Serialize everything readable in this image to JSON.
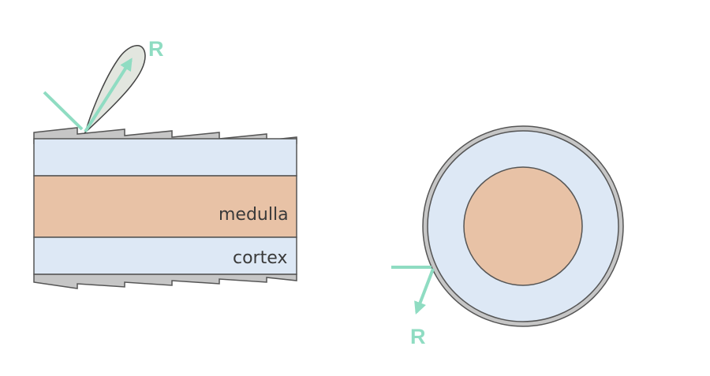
{
  "labels": {
    "reflection_top": "R",
    "reflection_cross": "R",
    "medulla": "medulla",
    "cortex": "cortex"
  },
  "colors": {
    "cortex": "#dde8f5",
    "medulla": "#e8c2a6",
    "cuticle": "#c6c6c6",
    "outline": "#555555",
    "arrow": "#8fdcc2",
    "lobe": "#e2e6df"
  }
}
